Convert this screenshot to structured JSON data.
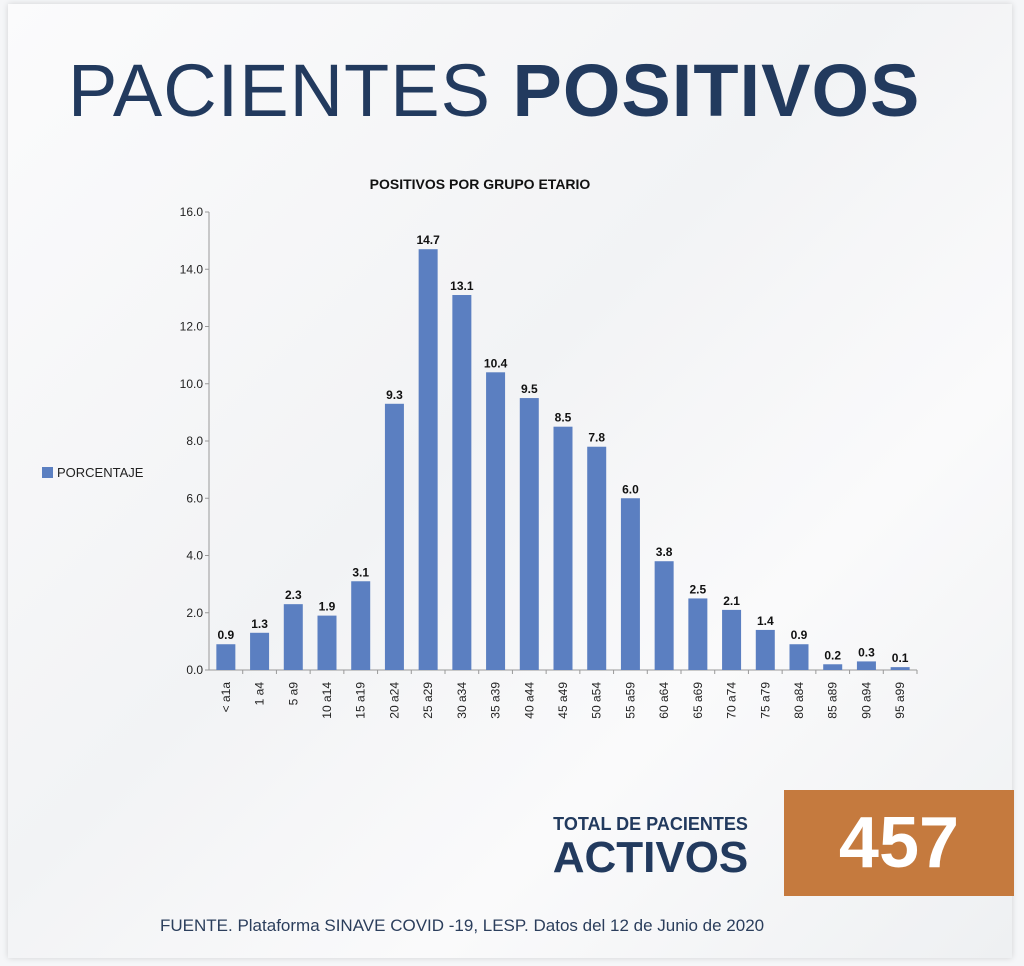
{
  "header": {
    "title_regular": "PACIENTES",
    "title_bold": "POSITIVOS"
  },
  "chart_data": {
    "type": "bar",
    "title": "POSITIVOS POR GRUPO ETARIO",
    "categories": [
      "< a1a",
      "1 a4",
      "5 a9",
      "10 a14",
      "15 a19",
      "20 a24",
      "25 a29",
      "30 a34",
      "35 a39",
      "40 a44",
      "45 a49",
      "50 a54",
      "55 a59",
      "60 a64",
      "65 a69",
      "70 a74",
      "75 a79",
      "80 a84",
      "85 a89",
      "90 a94",
      "95 a99"
    ],
    "series": [
      {
        "name": "PORCENTAJE",
        "values": [
          0.9,
          1.3,
          2.3,
          1.9,
          3.1,
          9.3,
          14.7,
          13.1,
          10.4,
          9.5,
          8.5,
          7.8,
          6.0,
          3.8,
          2.5,
          2.1,
          1.4,
          0.9,
          0.2,
          0.3,
          0.1
        ]
      }
    ],
    "value_labels": [
      "0.9",
      "1.3",
      "2.3",
      "1.9",
      "3.1",
      "9.3",
      "14.7",
      "13.1",
      "10.4",
      "9.5",
      "8.5",
      "7.8",
      "6.0",
      "3.8",
      "2.5",
      "2.1",
      "1.4",
      "0.9",
      "0.2",
      "0.3",
      "0.1"
    ],
    "yticks": [
      "0.0",
      "2.0",
      "4.0",
      "6.0",
      "8.0",
      "10.0",
      "12.0",
      "14.0",
      "16.0"
    ],
    "ylim": [
      0,
      16
    ],
    "legend_position": "left",
    "bar_color": "#5b7fc1"
  },
  "total": {
    "line1": "TOTAL DE PACIENTES",
    "line2": "ACTIVOS",
    "value": "457"
  },
  "footer": {
    "source": "FUENTE. Plataforma SINAVE COVID -19, LESP. Datos del 12 de Junio de 2020"
  },
  "colors": {
    "title": "#223a5e",
    "accent_box": "#c57a3e"
  }
}
